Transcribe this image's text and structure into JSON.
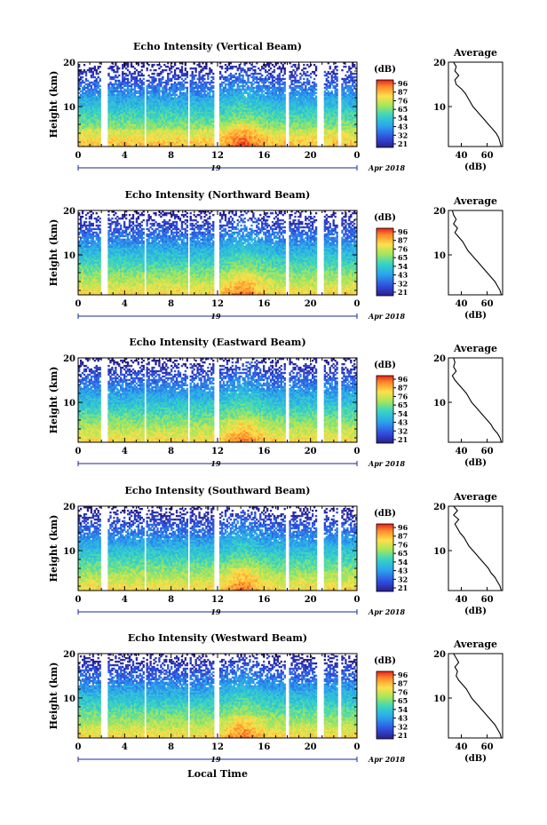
{
  "chart_data": [
    {
      "type": "heatmap",
      "title": "Echo Intensity (Vertical Beam)",
      "ylabel": "Height (km)",
      "xlim": [
        0,
        24
      ],
      "ylim": [
        1,
        20
      ],
      "x_ticks": [
        "0",
        "4",
        "8",
        "12",
        "16",
        "20",
        "0"
      ],
      "y_ticks": [
        "10",
        "20"
      ],
      "day_label": "19",
      "month_label": "Apr 2018",
      "colorbar": {
        "unit": "(dB)",
        "ticks": [
          "96",
          "87",
          "76",
          "65",
          "54",
          "43",
          "32",
          "21"
        ]
      },
      "profile": {
        "title": "Average",
        "xlabel": "(dB)",
        "x_ticks": [
          "40",
          "60"
        ],
        "xlim": [
          30,
          72
        ],
        "y_ticks": [
          "10",
          "20"
        ],
        "heights": [
          20,
          19,
          18,
          17,
          16,
          15,
          14,
          13,
          12,
          11,
          10,
          9,
          8,
          7,
          6,
          5,
          4,
          3,
          2,
          1
        ],
        "values": [
          34,
          36,
          35,
          38,
          35,
          36,
          40,
          43,
          45,
          47,
          49,
          52,
          55,
          58,
          61,
          64,
          67,
          69,
          70,
          71
        ]
      }
    },
    {
      "type": "heatmap",
      "title": "Echo Intensity (Northward Beam)",
      "ylabel": "Height (km)",
      "xlim": [
        0,
        24
      ],
      "ylim": [
        1,
        20
      ],
      "x_ticks": [
        "0",
        "4",
        "8",
        "12",
        "16",
        "20",
        "0"
      ],
      "y_ticks": [
        "10",
        "20"
      ],
      "day_label": "19",
      "month_label": "Apr 2018",
      "colorbar": {
        "unit": "(dB)",
        "ticks": [
          "96",
          "87",
          "76",
          "65",
          "54",
          "43",
          "32",
          "21"
        ]
      },
      "profile": {
        "title": "Average",
        "xlabel": "(dB)",
        "x_ticks": [
          "40",
          "60"
        ],
        "xlim": [
          30,
          72
        ],
        "y_ticks": [
          "10",
          "20"
        ],
        "heights": [
          20,
          19,
          18,
          17,
          16,
          15,
          14,
          13,
          12,
          11,
          10,
          9,
          8,
          7,
          6,
          5,
          4,
          3,
          2,
          1
        ],
        "values": [
          33,
          34,
          36,
          34,
          37,
          35,
          38,
          41,
          43,
          45,
          48,
          51,
          54,
          57,
          60,
          63,
          66,
          68,
          70,
          71
        ]
      }
    },
    {
      "type": "heatmap",
      "title": "Echo Intensity (Eastward Beam)",
      "ylabel": "Height (km)",
      "xlim": [
        0,
        24
      ],
      "ylim": [
        1,
        20
      ],
      "x_ticks": [
        "0",
        "4",
        "8",
        "12",
        "16",
        "20",
        "0"
      ],
      "y_ticks": [
        "10",
        "20"
      ],
      "day_label": "19",
      "month_label": "Apr 2018",
      "colorbar": {
        "unit": "(dB)",
        "ticks": [
          "96",
          "87",
          "76",
          "65",
          "54",
          "43",
          "32",
          "21"
        ]
      },
      "profile": {
        "title": "Average",
        "xlabel": "(dB)",
        "x_ticks": [
          "40",
          "60"
        ],
        "xlim": [
          30,
          72
        ],
        "y_ticks": [
          "10",
          "20"
        ],
        "heights": [
          20,
          19,
          18,
          17,
          16,
          15,
          14,
          13,
          12,
          11,
          10,
          9,
          8,
          7,
          6,
          5,
          4,
          3,
          2,
          1
        ],
        "values": [
          34,
          35,
          34,
          36,
          33,
          35,
          38,
          41,
          44,
          46,
          48,
          51,
          54,
          57,
          60,
          63,
          65,
          68,
          70,
          71
        ]
      }
    },
    {
      "type": "heatmap",
      "title": "Echo Intensity (Southward Beam)",
      "ylabel": "Height (km)",
      "xlim": [
        0,
        24
      ],
      "ylim": [
        1,
        20
      ],
      "x_ticks": [
        "0",
        "4",
        "8",
        "12",
        "16",
        "20",
        "0"
      ],
      "y_ticks": [
        "10",
        "20"
      ],
      "day_label": "19",
      "month_label": "Apr 2018",
      "colorbar": {
        "unit": "(dB)",
        "ticks": [
          "96",
          "87",
          "76",
          "65",
          "54",
          "43",
          "32",
          "21"
        ]
      },
      "profile": {
        "title": "Average",
        "xlabel": "(dB)",
        "x_ticks": [
          "40",
          "60"
        ],
        "xlim": [
          30,
          72
        ],
        "y_ticks": [
          "10",
          "20"
        ],
        "heights": [
          20,
          19,
          18,
          17,
          16,
          15,
          14,
          13,
          12,
          11,
          10,
          9,
          8,
          7,
          6,
          5,
          4,
          3,
          2,
          1
        ],
        "values": [
          34,
          37,
          34,
          38,
          35,
          37,
          39,
          42,
          44,
          46,
          49,
          52,
          55,
          58,
          61,
          63,
          66,
          68,
          70,
          71
        ]
      }
    },
    {
      "type": "heatmap",
      "title": "Echo Intensity (Westward Beam)",
      "ylabel": "Height (km)",
      "xlim": [
        0,
        24
      ],
      "ylim": [
        1,
        20
      ],
      "x_ticks": [
        "0",
        "4",
        "8",
        "12",
        "16",
        "20",
        "0"
      ],
      "y_ticks": [
        "10",
        "20"
      ],
      "day_label": "19",
      "month_label": "Apr 2018",
      "xlabel": "Local Time",
      "colorbar": {
        "unit": "(dB)",
        "ticks": [
          "96",
          "87",
          "76",
          "65",
          "54",
          "43",
          "32",
          "21"
        ]
      },
      "profile": {
        "title": "Average",
        "xlabel": "(dB)",
        "x_ticks": [
          "40",
          "60"
        ],
        "xlim": [
          30,
          72
        ],
        "y_ticks": [
          "10",
          "20"
        ],
        "heights": [
          20,
          19,
          18,
          17,
          16,
          15,
          14,
          13,
          12,
          11,
          10,
          9,
          8,
          7,
          6,
          5,
          4,
          3,
          2,
          1
        ],
        "values": [
          34,
          36,
          38,
          35,
          37,
          36,
          38,
          41,
          44,
          46,
          48,
          51,
          54,
          57,
          60,
          63,
          66,
          68,
          70,
          71
        ]
      }
    }
  ]
}
